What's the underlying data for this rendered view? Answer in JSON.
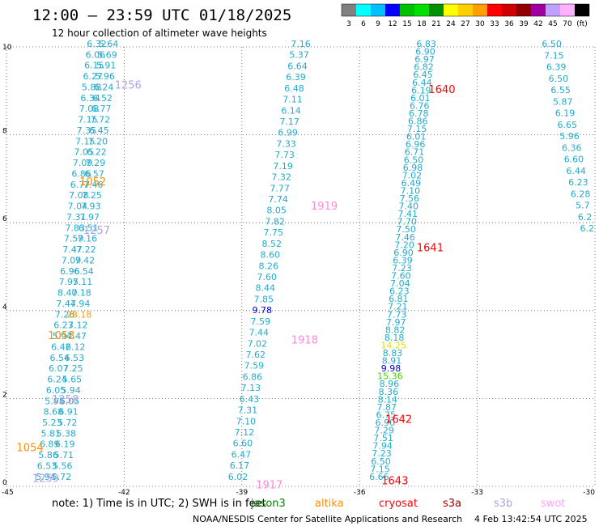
{
  "header": {
    "title": "12:00 – 23:59 UTC 01/18/2025",
    "subtitle": "12 hour collection of altimeter wave heights"
  },
  "colorbar": {
    "labels": [
      "3",
      "6",
      "9",
      "12",
      "15",
      "18",
      "21",
      "24",
      "27",
      "30",
      "33",
      "36",
      "39",
      "42",
      "45",
      "70",
      "(ft)"
    ],
    "colors": [
      "#808080",
      "#00ffff",
      "#00c0ff",
      "#0000ff",
      "#00c000",
      "#00e000",
      "#009000",
      "#ffff00",
      "#ffd000",
      "#ffa000",
      "#ff0000",
      "#d00000",
      "#900000",
      "#a000a0",
      "#c0a0ff",
      "#ffb0ff",
      "#000000"
    ]
  },
  "footer": {
    "note": "note:  1) Time is in UTC; 2) SWH is in feet",
    "legend": [
      {
        "name": "jason3",
        "color": "#008000"
      },
      {
        "name": "altika",
        "color": "#ff8c00"
      },
      {
        "name": "cryosat",
        "color": "#ff0000"
      },
      {
        "name": "s3a",
        "color": "#a00000"
      },
      {
        "name": "s3b",
        "color": "#b0a0e0"
      },
      {
        "name": "swot",
        "color": "#ffa0ff"
      }
    ],
    "credit": "NOAA/NESDIS Center for Satellite Applications and Research",
    "timestamp": "4 Feb 13:42:54 UTC 2025"
  },
  "chart_data": {
    "type": "scatter",
    "xlim": [
      -45,
      -30
    ],
    "ylim": [
      0,
      10
    ],
    "xticks": [
      "-45",
      "-42",
      "-39",
      "-36",
      "-33",
      "-30"
    ],
    "yticks": [
      "0",
      "2",
      "4",
      "6",
      "8",
      "10"
    ],
    "grid": true,
    "tracks": [
      {
        "id": "track-a",
        "start": [
          -44.0,
          0.15
        ],
        "end": [
          -42.7,
          10.0
        ],
        "labels": [
          "5.94",
          "6.53",
          "5.86",
          "6.89",
          "5.81",
          "5.23",
          "8.68",
          "5.95",
          "6.05",
          "6.24",
          "6.07",
          "6.54",
          "6.42",
          "5.94",
          "6.23",
          "7.26",
          "7.44",
          "8.40",
          "7.95",
          "6.96",
          "7.09",
          "7.47",
          "7.59",
          "7.83",
          "7.31",
          "7.04",
          "7.08",
          "6.77",
          "6.86",
          "7.09",
          "7.05",
          "7.15",
          "7.35",
          "7.15",
          "7.08",
          "6.34",
          "5.88",
          "6.27",
          "6.15",
          "6.06",
          "6.32"
        ]
      },
      {
        "id": "track-b",
        "start": [
          -43.6,
          0.15
        ],
        "end": [
          -42.4,
          10.0
        ],
        "labels": [
          "5.72",
          "5.56",
          "5.71",
          "6.19",
          "5.38",
          "5.72",
          "6.91",
          "6.05",
          "5.94",
          "5.65",
          "7.25",
          "6.53",
          "6.12",
          "7.47",
          "7.12",
          "28.18",
          "7.94",
          "7.18",
          "7.11",
          "6.54",
          "7.42",
          "7.22",
          "7.16",
          "6.51",
          "7.97",
          "7.93",
          "7.25",
          "7.46",
          "6.57",
          "7.29",
          "6.22",
          "7.20",
          "6.45",
          "7.72",
          "6.77",
          "6.52",
          "6.24",
          "5.96",
          "5.91",
          "5.69",
          "5.64"
        ]
      },
      {
        "id": "track-c",
        "start": [
          -39.1,
          0.15
        ],
        "end": [
          -37.5,
          10.0
        ],
        "labels": [
          "6.02",
          "6.17",
          "6.47",
          "6.60",
          "7.12",
          "7.10",
          "7.31",
          "6.43",
          "7.13",
          "6.86",
          "7.59",
          "7.62",
          "7.02",
          "7.44",
          "7.59",
          "9.78",
          "7.85",
          "8.44",
          "7.60",
          "8.26",
          "8.60",
          "8.52",
          "7.75",
          "7.82",
          "8.05",
          "7.74",
          "7.77",
          "7.32",
          "7.19",
          "7.73",
          "7.33",
          "6.99",
          "7.17",
          "6.14",
          "7.11",
          "6.48",
          "6.39",
          "6.64",
          "5.37",
          "7.16"
        ]
      },
      {
        "id": "track-d",
        "start": [
          -35.5,
          0.15
        ],
        "end": [
          -34.3,
          10.0
        ],
        "labels": [
          "6.66",
          "7.15",
          "6.50",
          "7.23",
          "7.94",
          "7.51",
          "7.29",
          "6.90",
          "6.75",
          "7.87",
          "8.14",
          "8.36",
          "8.96",
          "15.36",
          "9.98",
          "8.91",
          "8.83",
          "14.25",
          "8.18",
          "8.82",
          "7.97",
          "7.73",
          "7.21",
          "6.81",
          "6.23",
          "7.04",
          "7.60",
          "7.23",
          "6.39",
          "6.90",
          "7.20",
          "7.46",
          "7.50",
          "7.70",
          "7.41",
          "7.40",
          "7.56",
          "7.10",
          "6.49",
          "7.02",
          "6.98",
          "6.50",
          "6.71",
          "6.96",
          "6.01",
          "7.15",
          "6.86",
          "6.78",
          "6.76",
          "6.01",
          "6.19",
          "6.44",
          "6.45",
          "6.82",
          "6.97",
          "6.90",
          "6.83"
        ]
      },
      {
        "id": "track-e",
        "start": [
          -30.2,
          5.8
        ],
        "end": [
          -31.1,
          10.0
        ],
        "labels": [
          "6.2",
          "6.2",
          "5.7",
          "6.28",
          "6.23",
          "6.44",
          "6.60",
          "6.36",
          "5.96",
          "6.65",
          "6.19",
          "5.87",
          "6.55",
          "6.50",
          "6.39",
          "7.15",
          "6.50"
        ]
      }
    ],
    "highlights": [
      {
        "value": "28.18",
        "color": "#ff9900"
      },
      {
        "value": "9.78",
        "color": "#0000cc"
      },
      {
        "value": "9.98",
        "color": "#0000cc"
      },
      {
        "value": "15.36",
        "color": "#44cc00"
      },
      {
        "value": "14.25",
        "color": "#dddd00"
      }
    ],
    "pass_labels": [
      {
        "text": "1256",
        "x": -41.9,
        "y": 9.05,
        "color": "#b0a0e0"
      },
      {
        "text": "1052",
        "x": -42.8,
        "y": 6.85,
        "color": "#ff8c00"
      },
      {
        "text": "1257",
        "x": -42.7,
        "y": 5.75,
        "color": "#b0a0e0"
      },
      {
        "text": "1053",
        "x": -43.6,
        "y": 3.35,
        "color": "#ff8c00"
      },
      {
        "text": "1258",
        "x": -43.5,
        "y": 1.9,
        "color": "#b0a0e0"
      },
      {
        "text": "1054",
        "x": -44.4,
        "y": 0.8,
        "color": "#ff8c00"
      },
      {
        "text": "1259",
        "x": -44.0,
        "y": 0.1,
        "color": "#b0a0e0"
      },
      {
        "text": "1919",
        "x": -36.9,
        "y": 6.3,
        "color": "#ff88dd"
      },
      {
        "text": "1918",
        "x": -37.4,
        "y": 3.25,
        "color": "#ff88dd"
      },
      {
        "text": "1917",
        "x": -38.3,
        "y": -0.05,
        "color": "#ff88dd"
      },
      {
        "text": "1640",
        "x": -33.9,
        "y": 8.95,
        "color": "#ff0000"
      },
      {
        "text": "1641",
        "x": -34.2,
        "y": 5.35,
        "color": "#ff0000"
      },
      {
        "text": "1642",
        "x": -35.0,
        "y": 1.45,
        "color": "#ff0000"
      },
      {
        "text": "1643",
        "x": -35.1,
        "y": 0.05,
        "color": "#ff0000"
      }
    ]
  }
}
